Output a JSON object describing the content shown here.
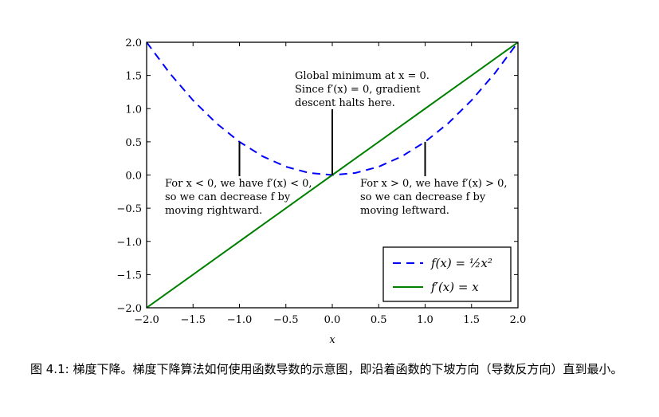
{
  "chart_data": {
    "type": "line",
    "x": [
      -2.0,
      -1.75,
      -1.5,
      -1.25,
      -1.0,
      -0.75,
      -0.5,
      -0.25,
      0.0,
      0.25,
      0.5,
      0.75,
      1.0,
      1.25,
      1.5,
      1.75,
      2.0
    ],
    "series": [
      {
        "name": "f(x) = ½x²",
        "values": [
          2.0,
          1.53125,
          1.125,
          0.78125,
          0.5,
          0.28125,
          0.125,
          0.03125,
          0.0,
          0.03125,
          0.125,
          0.28125,
          0.5,
          0.78125,
          1.125,
          1.53125,
          2.0
        ],
        "color": "#0000ff",
        "style": "dashed"
      },
      {
        "name": "f′(x) = x",
        "values": [
          -2.0,
          -1.75,
          -1.5,
          -1.25,
          -1.0,
          -0.75,
          -0.5,
          -0.25,
          0.0,
          0.25,
          0.5,
          0.75,
          1.0,
          1.25,
          1.5,
          1.75,
          2.0
        ],
        "color": "#008000",
        "style": "solid"
      }
    ],
    "xlabel": "x",
    "ylabel": "",
    "xlim": [
      -2.0,
      2.0
    ],
    "ylim": [
      -2.0,
      2.0
    ],
    "xticks": [
      "−2.0",
      "−1.5",
      "−1.0",
      "−0.5",
      "0.0",
      "0.5",
      "1.0",
      "1.5",
      "2.0"
    ],
    "yticks": [
      "2.0",
      "1.5",
      "1.0",
      "0.5",
      "0.0",
      "−0.5",
      "−1.0",
      "−1.5",
      "−2.0"
    ],
    "grid": false,
    "legend_position": "bottom-right",
    "annotations": [
      {
        "point": [
          0.0,
          0.0
        ],
        "lines": [
          "Global minimum at x = 0.",
          "Since f′(x) = 0, gradient",
          "descent halts here."
        ]
      },
      {
        "point": [
          -1.0,
          0.5
        ],
        "lines": [
          "For x < 0, we have f′(x) < 0,",
          "so we can decrease f by",
          "moving rightward."
        ]
      },
      {
        "point": [
          1.0,
          0.5
        ],
        "lines": [
          "For x > 0, we have f′(x) > 0,",
          "so we can decrease f by",
          "moving leftward."
        ]
      }
    ]
  },
  "caption": {
    "text": "图 4.1: 梯度下降。梯度下降算法如何使用函数导数的示意图，即沿着函数的下坡方向（导数反方向）直到最小。"
  }
}
